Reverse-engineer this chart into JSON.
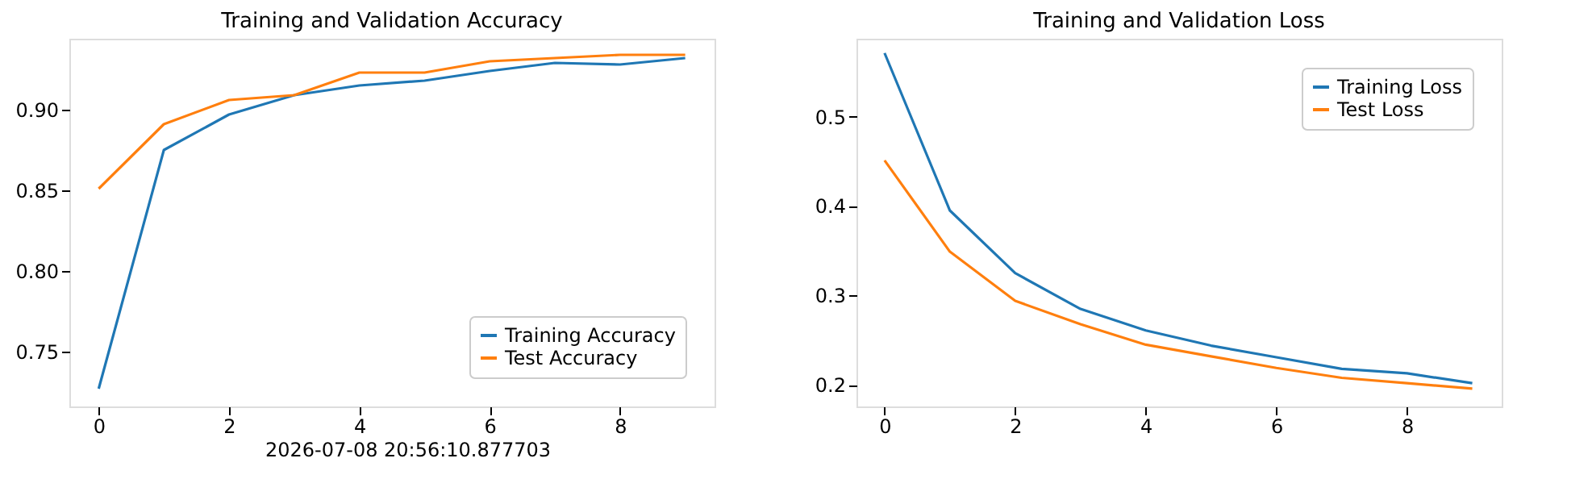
{
  "chart_data": [
    {
      "type": "line",
      "title": "Training and Validation Accuracy",
      "x": [
        0,
        1,
        2,
        3,
        4,
        5,
        6,
        7,
        8,
        9
      ],
      "series": [
        {
          "name": "Training Accuracy",
          "color": "#1f77b4",
          "values": [
            0.727,
            0.875,
            0.897,
            0.909,
            0.915,
            0.918,
            0.924,
            0.929,
            0.928,
            0.932
          ]
        },
        {
          "name": "Test Accuracy",
          "color": "#ff7f0e",
          "values": [
            0.851,
            0.891,
            0.906,
            0.909,
            0.923,
            0.923,
            0.93,
            0.932,
            0.934,
            0.934
          ]
        }
      ],
      "xlim": [
        -0.45,
        9.45
      ],
      "xticks": [
        0,
        2,
        4,
        6,
        8
      ],
      "ylim": [
        0.716,
        0.944
      ],
      "yticks": [
        0.75,
        {
          "value": 0.8,
          "label": "0.80"
        },
        0.85,
        {
          "value": 0.9,
          "label": "0.90"
        }
      ],
      "annotations": [
        "2026-07-08 20:56:10.877703"
      ],
      "legend": "bottom right",
      "grid": false,
      "marker": "none",
      "line_style": "solid"
    },
    {
      "type": "line",
      "title": "Training and Validation Loss",
      "x": [
        0,
        1,
        2,
        3,
        4,
        5,
        6,
        7,
        8,
        9
      ],
      "series": [
        {
          "name": "Training Loss",
          "color": "#1f77b4",
          "values": [
            0.571,
            0.395,
            0.325,
            0.285,
            0.261,
            0.244,
            0.231,
            0.218,
            0.213,
            0.202
          ]
        },
        {
          "name": "Test Loss",
          "color": "#ff7f0e",
          "values": [
            0.451,
            0.349,
            0.294,
            0.268,
            0.245,
            0.232,
            0.219,
            0.208,
            0.202,
            0.196
          ]
        }
      ],
      "xlim": [
        -0.43,
        9.45
      ],
      "xticks": [
        0,
        2,
        4,
        6,
        8
      ],
      "ylim": [
        0.176,
        0.587
      ],
      "yticks": [
        0.2,
        0.3,
        0.4,
        0.5
      ],
      "legend": "top right",
      "grid": false,
      "marker": "none",
      "line_style": "solid"
    }
  ]
}
